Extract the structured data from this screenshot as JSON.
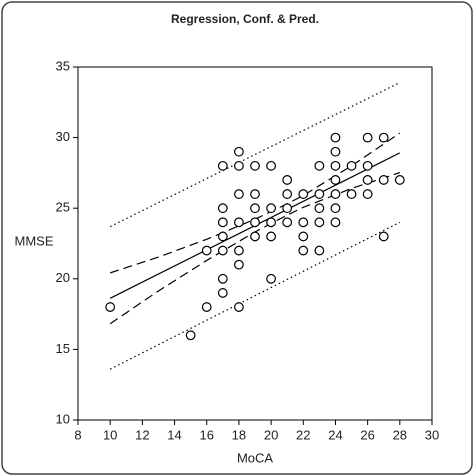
{
  "chart_data": {
    "type": "scatter",
    "title": "Regression, Conf. & Pred.",
    "xlabel": "MoCA",
    "ylabel": "MMSE",
    "xlim": [
      8,
      30
    ],
    "ylim": [
      10,
      35
    ],
    "xticks": [
      8,
      10,
      12,
      14,
      16,
      18,
      20,
      22,
      24,
      26,
      28,
      30
    ],
    "yticks": [
      10,
      15,
      20,
      25,
      30,
      35
    ],
    "x": [
      10,
      15,
      16,
      16,
      17,
      17,
      17,
      17,
      17,
      17,
      17,
      18,
      18,
      18,
      18,
      18,
      18,
      18,
      19,
      19,
      19,
      19,
      19,
      20,
      20,
      20,
      20,
      20,
      21,
      21,
      21,
      21,
      22,
      22,
      22,
      22,
      23,
      23,
      23,
      23,
      23,
      24,
      24,
      24,
      24,
      24,
      24,
      24,
      25,
      25,
      26,
      26,
      26,
      26,
      27,
      27,
      27,
      28
    ],
    "values": [
      18,
      16,
      22,
      18,
      28,
      25,
      24,
      23,
      22,
      20,
      19,
      29,
      28,
      26,
      24,
      22,
      21,
      18,
      28,
      26,
      25,
      24,
      23,
      28,
      25,
      24,
      23,
      20,
      27,
      26,
      25,
      24,
      26,
      24,
      23,
      22,
      28,
      26,
      25,
      24,
      22,
      30,
      29,
      28,
      27,
      26,
      25,
      24,
      26,
      28,
      30,
      28,
      27,
      26,
      30,
      27,
      23,
      27
    ],
    "marker_color": "#000000",
    "fits": [
      {
        "x": [
          10,
          28
        ],
        "values": [
          18.62,
          28.92
        ],
        "dash": "solid"
      },
      {
        "x": [
          10,
          13,
          16,
          19,
          21,
          22,
          25,
          28
        ],
        "values": [
          20.42,
          21.54,
          22.8,
          24.22,
          25.31,
          25.9,
          28.0,
          30.32
        ],
        "dash": "dashed"
      },
      {
        "x": [
          10,
          13,
          16,
          19,
          21,
          22,
          25,
          28
        ],
        "values": [
          16.82,
          19.14,
          21.3,
          23.32,
          24.51,
          25.06,
          26.4,
          27.52
        ],
        "dash": "dashed"
      },
      {
        "x": [
          10,
          28
        ],
        "values": [
          23.7,
          33.9
        ],
        "dash": "dotted"
      },
      {
        "x": [
          10,
          28
        ],
        "values": [
          13.6,
          24.0
        ],
        "dash": "dotted"
      }
    ]
  }
}
